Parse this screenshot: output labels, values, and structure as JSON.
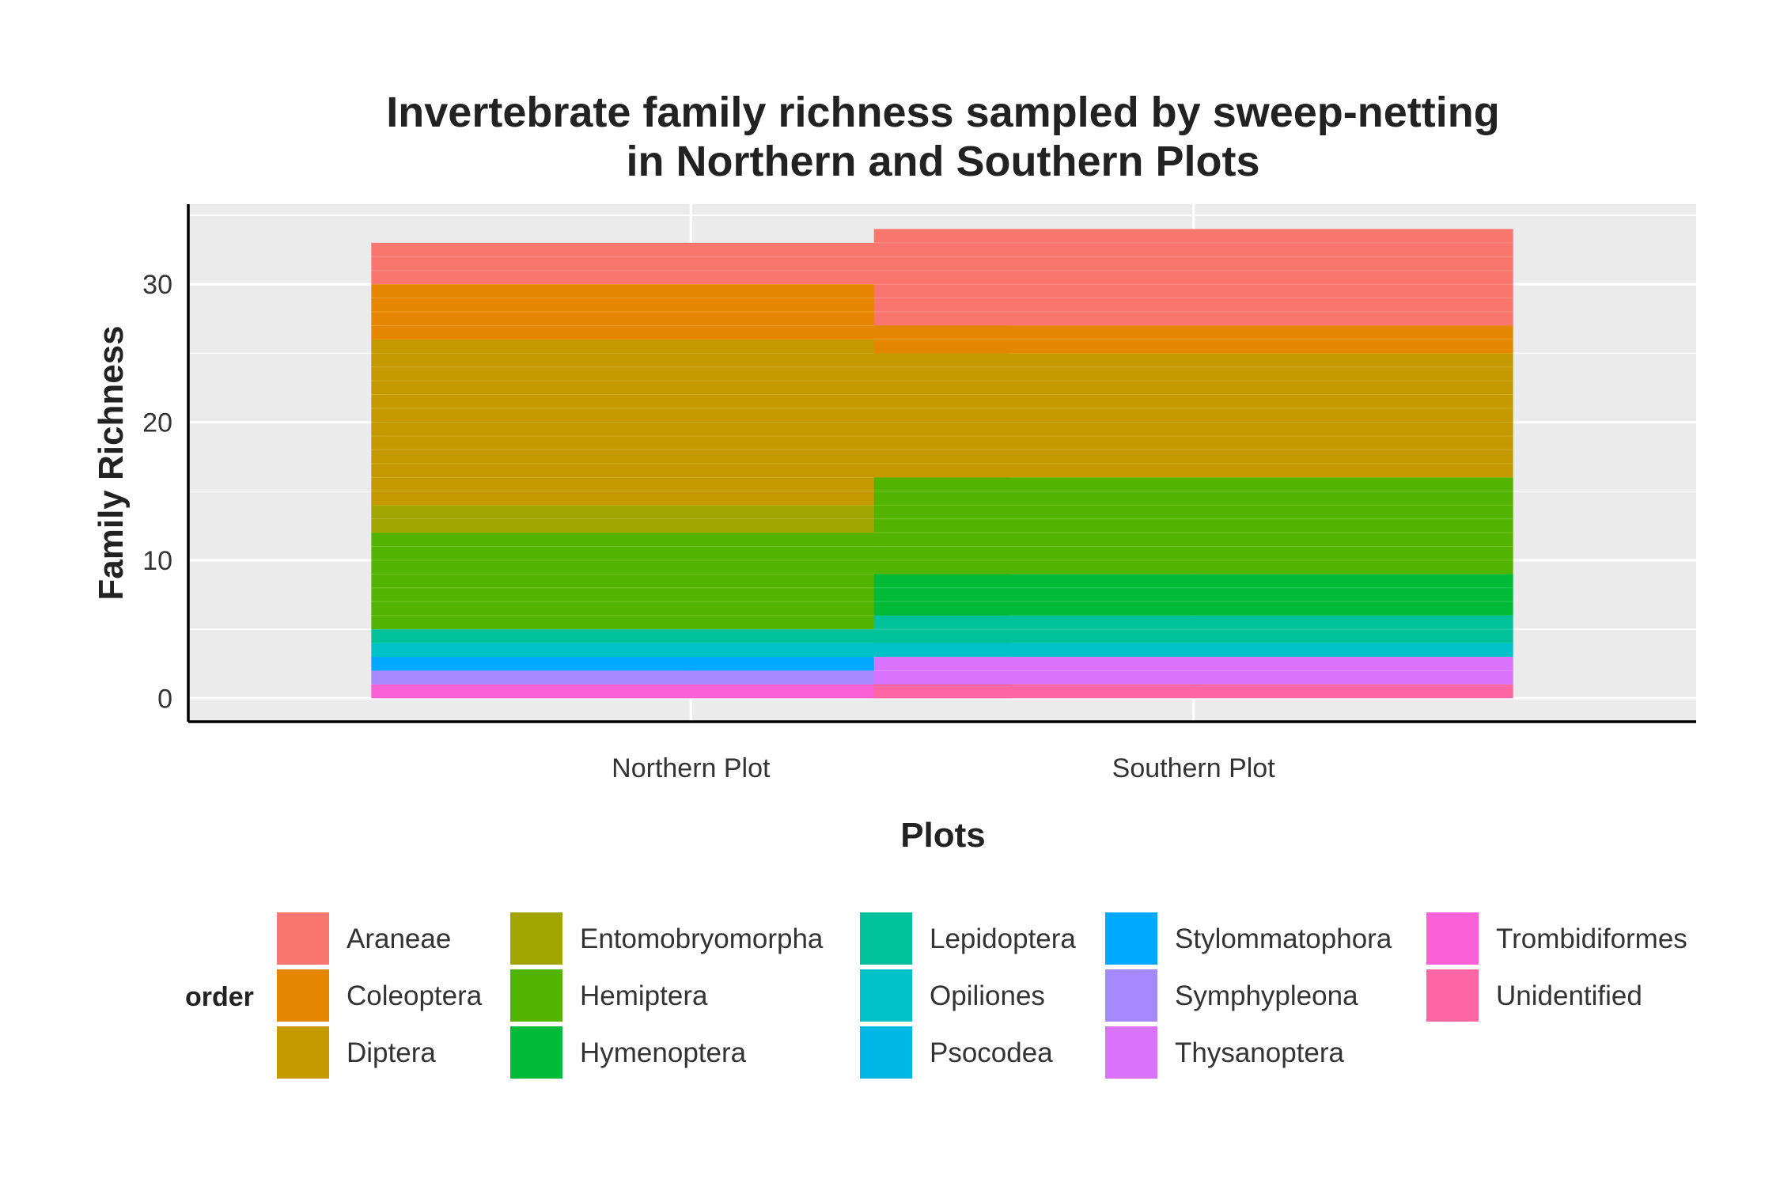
{
  "chart_data": {
    "type": "bar",
    "stacked": true,
    "title_lines": [
      "Invertebrate family richness sampled by sweep-netting",
      "in Northern and Southern Plots"
    ],
    "xlabel": "Plots",
    "ylabel": "Family Richness",
    "ylim": [
      -1.7,
      35.8
    ],
    "yticks": [
      "0",
      "10",
      "20",
      "30"
    ],
    "grid": true,
    "categories": [
      "Northern Plot",
      "Southern Plot"
    ],
    "series": [
      {
        "name": "Trombidiformes",
        "color": "#FB61D7",
        "values": [
          1,
          0
        ]
      },
      {
        "name": "Unidentified",
        "color": "#FF67A4",
        "values": [
          0,
          1
        ]
      },
      {
        "name": "Thysanoptera",
        "color": "#DB72FB",
        "values": [
          0,
          2
        ]
      },
      {
        "name": "Symphypleona",
        "color": "#A58AFF",
        "values": [
          1,
          0
        ]
      },
      {
        "name": "Stylommatophora",
        "color": "#00A9FF",
        "values": [
          1,
          0
        ]
      },
      {
        "name": "Psocodea",
        "color": "#00B8E7",
        "values": [
          0,
          0
        ]
      },
      {
        "name": "Opiliones",
        "color": "#00C1C7",
        "values": [
          1,
          1
        ]
      },
      {
        "name": "Lepidoptera",
        "color": "#00C19A",
        "values": [
          1,
          2
        ]
      },
      {
        "name": "Hymenoptera",
        "color": "#00BA38",
        "values": [
          0,
          3
        ]
      },
      {
        "name": "Hemiptera",
        "color": "#53B400",
        "values": [
          7,
          7
        ]
      },
      {
        "name": "Entomobryomorpha",
        "color": "#A3A500",
        "values": [
          2,
          0
        ]
      },
      {
        "name": "Diptera",
        "color": "#C49A00",
        "values": [
          12,
          9
        ]
      },
      {
        "name": "Coleoptera",
        "color": "#E58700",
        "values": [
          4,
          2
        ]
      },
      {
        "name": "Araneae",
        "color": "#F8766D",
        "values": [
          3,
          7
        ]
      }
    ],
    "legend": {
      "title": "order",
      "position": "bottom",
      "columns": [
        [
          {
            "label": "Araneae",
            "color": "#F8766D"
          },
          {
            "label": "Coleoptera",
            "color": "#E58700"
          },
          {
            "label": "Diptera",
            "color": "#C49A00"
          }
        ],
        [
          {
            "label": "Entomobryomorpha",
            "color": "#A3A500"
          },
          {
            "label": "Hemiptera",
            "color": "#53B400"
          },
          {
            "label": "Hymenoptera",
            "color": "#00BA38"
          }
        ],
        [
          {
            "label": "Lepidoptera",
            "color": "#00C19A"
          },
          {
            "label": "Opiliones",
            "color": "#00C1C7"
          },
          {
            "label": "Psocodea",
            "color": "#00B8E7"
          }
        ],
        [
          {
            "label": "Stylommatophora",
            "color": "#00A9FF"
          },
          {
            "label": "Symphypleona",
            "color": "#A58AFF"
          },
          {
            "label": "Thysanoptera",
            "color": "#DB72FB"
          }
        ],
        [
          {
            "label": "Trombidiformes",
            "color": "#FB61D7"
          },
          {
            "label": "Unidentified",
            "color": "#FF67A4"
          }
        ]
      ]
    },
    "colors": {
      "panel": "#EBEBEB",
      "grid": "#FFFFFF",
      "axis_line": "#000000"
    }
  }
}
